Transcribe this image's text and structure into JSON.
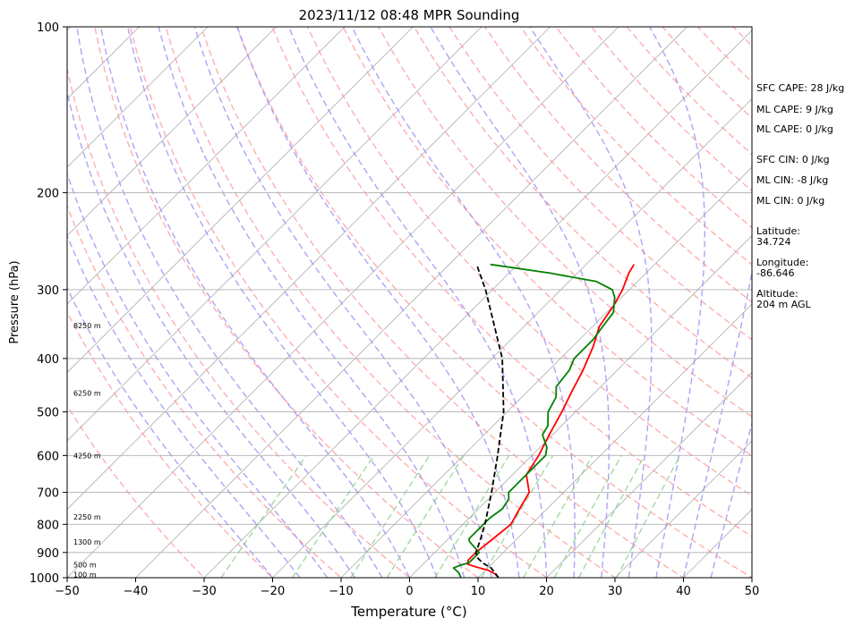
{
  "chart_data": {
    "type": "line",
    "title": "2023/11/12 08:48 MPR Sounding",
    "xlabel": "Temperature (°C)",
    "ylabel": "Pressure (hPa)",
    "xlim": [
      -50,
      50
    ],
    "ylim": [
      1000,
      100
    ],
    "y_scale": "log",
    "x_ticks": [
      -50,
      -40,
      -30,
      -20,
      -10,
      0,
      10,
      20,
      30,
      40,
      50
    ],
    "y_ticks": [
      1000,
      900,
      800,
      700,
      600,
      500,
      400,
      300,
      200,
      100
    ],
    "skew": "skew-T log-p",
    "grid": true,
    "height_labels": [
      {
        "label": "100 m",
        "p": 990
      },
      {
        "label": "500 m",
        "p": 950
      },
      {
        "label": "1300 m",
        "p": 865
      },
      {
        "label": "2250 m",
        "p": 778
      },
      {
        "label": "4250 m",
        "p": 603
      },
      {
        "label": "6250 m",
        "p": 464
      },
      {
        "label": "8250 m",
        "p": 350
      }
    ],
    "series": [
      {
        "color": "#ff0000",
        "points": [
          [
            1000,
            13.0
          ],
          [
            985,
            12.0
          ],
          [
            970,
            10.5
          ],
          [
            955,
            8.0
          ],
          [
            945,
            6.5
          ],
          [
            930,
            6.0
          ],
          [
            900,
            6.0
          ],
          [
            850,
            6.5
          ],
          [
            800,
            7.0
          ],
          [
            750,
            6.0
          ],
          [
            700,
            5.0
          ],
          [
            650,
            2.0
          ],
          [
            600,
            1.0
          ],
          [
            550,
            -0.5
          ],
          [
            500,
            -2.0
          ],
          [
            460,
            -3.5
          ],
          [
            420,
            -5.0
          ],
          [
            380,
            -7.0
          ],
          [
            350,
            -9.0
          ],
          [
            320,
            -10.0
          ],
          [
            300,
            -11.0
          ],
          [
            280,
            -12.5
          ],
          [
            270,
            -13.0
          ]
        ]
      },
      {
        "color": "#008000",
        "points": [
          [
            1000,
            7.5
          ],
          [
            980,
            6.5
          ],
          [
            960,
            5.0
          ],
          [
            950,
            5.5
          ],
          [
            940,
            6.5
          ],
          [
            920,
            6.5
          ],
          [
            900,
            6.5
          ],
          [
            880,
            5.0
          ],
          [
            860,
            3.5
          ],
          [
            850,
            3.0
          ],
          [
            820,
            3.0
          ],
          [
            800,
            3.0
          ],
          [
            780,
            3.0
          ],
          [
            750,
            3.5
          ],
          [
            720,
            3.0
          ],
          [
            700,
            2.0
          ],
          [
            660,
            2.0
          ],
          [
            600,
            2.0
          ],
          [
            580,
            1.0
          ],
          [
            550,
            -1.5
          ],
          [
            530,
            -2.0
          ],
          [
            500,
            -4.0
          ],
          [
            470,
            -5.0
          ],
          [
            450,
            -6.5
          ],
          [
            420,
            -7.0
          ],
          [
            400,
            -8.0
          ],
          [
            370,
            -8.0
          ],
          [
            350,
            -8.5
          ],
          [
            330,
            -9.0
          ],
          [
            310,
            -11.0
          ],
          [
            300,
            -12.5
          ],
          [
            290,
            -16.0
          ],
          [
            280,
            -24.0
          ],
          [
            270,
            -34.0
          ]
        ]
      },
      {
        "color": "#000000",
        "points": [
          [
            1000,
            13.0
          ],
          [
            960,
            10.5
          ],
          [
            940,
            8.5
          ],
          [
            920,
            7.0
          ],
          [
            900,
            6.0
          ],
          [
            880,
            5.5
          ],
          [
            850,
            4.7
          ],
          [
            800,
            3.2
          ],
          [
            700,
            -0.5
          ],
          [
            600,
            -5.0
          ],
          [
            500,
            -10.5
          ],
          [
            400,
            -18.5
          ],
          [
            300,
            -31.0
          ],
          [
            270,
            -36.0
          ]
        ]
      }
    ]
  },
  "sidebar": {
    "sfc_cape": "SFC CAPE: 28 J/kg",
    "ml_cape_1": "ML CAPE: 9 J/kg",
    "ml_cape_2": "ML CAPE: 0 J/kg",
    "sfc_cin": "SFC CIN: 0 J/kg",
    "ml_cin_1": "ML CIN: -8 J/kg",
    "ml_cin_2": "ML CIN: 0 J/kg",
    "latitude": "Latitude:\n34.724",
    "longitude": "Longitude:\n-86.646",
    "altitude": "Altitude:\n204 m AGL"
  },
  "colors": {
    "temperature": "#ff0000",
    "dewpoint": "#008000",
    "parcel": "#000000",
    "dry_adiabat": "#ff9a9a",
    "moist_adiabat": "#9b8cf2",
    "mixing_ratio": "#8ccf8c",
    "isotherm": "#b0b0b0"
  }
}
